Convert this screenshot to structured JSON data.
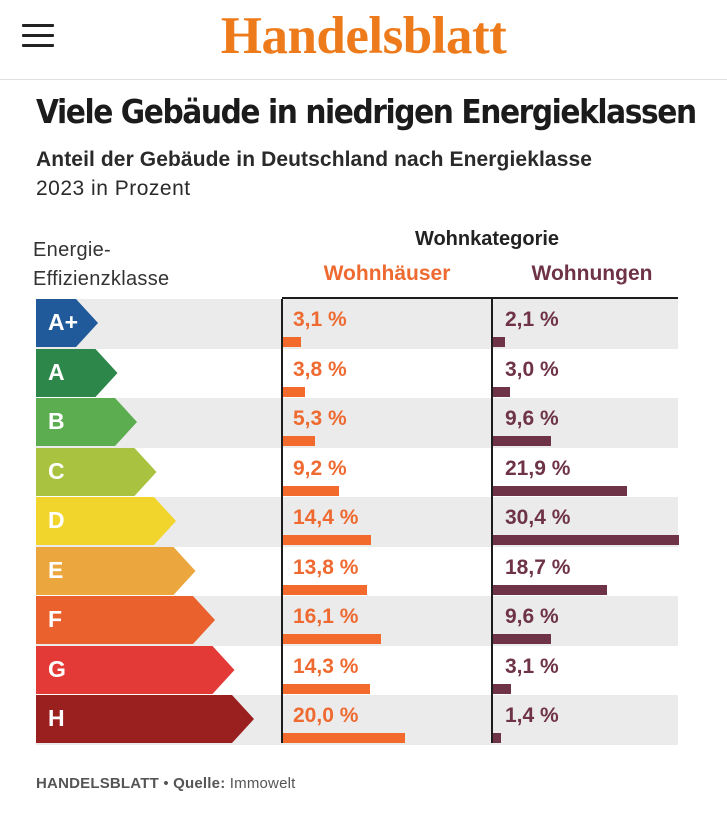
{
  "header": {
    "logo_text": "Handelsblatt",
    "menu_icon": "hamburger-menu-icon"
  },
  "article": {
    "title": "Viele Gebäude in niedrigen Energieklassen",
    "subtitle": "Anteil der Gebäude in Deutschland nach Energieklasse",
    "unit_line": "2023 in Prozent"
  },
  "table": {
    "energy_header_line1": "Energie-",
    "energy_header_line2": "Effizienzklasse",
    "category_header": "Wohnkategorie",
    "col1_header": "Wohnhäuser",
    "col2_header": "Wohnungen"
  },
  "footer": {
    "brand": "HANDELSBLATT",
    "separator": " • ",
    "source_label": "Quelle:",
    "source": " Immowelt"
  },
  "colors": {
    "logo": "#ee7b1b",
    "wohnhaeuser": "#f26a2c",
    "wohnungen": "#6e3346",
    "A+": "#205a9b",
    "A": "#2e874a",
    "B": "#5bad4f",
    "C": "#a9c341",
    "D": "#f2d52c",
    "E": "#eba63d",
    "F": "#ea612d",
    "G": "#e43a37",
    "H": "#9a1f1f"
  },
  "chart_data": {
    "type": "bar",
    "title": "Viele Gebäude in niedrigen Energieklassen",
    "subtitle": "Anteil der Gebäude in Deutschland nach Energieklasse",
    "categories": [
      "A+",
      "A",
      "B",
      "C",
      "D",
      "E",
      "F",
      "G",
      "H"
    ],
    "series": [
      {
        "name": "Wohnhäuser",
        "values": [
          3.1,
          3.8,
          5.3,
          9.2,
          14.4,
          13.8,
          16.1,
          14.3,
          20.0
        ],
        "labels": [
          "3,1 %",
          "3,8 %",
          "5,3 %",
          "9,2 %",
          "14,4 %",
          "13,8 %",
          "16,1 %",
          "14,3 %",
          "20,0 %"
        ]
      },
      {
        "name": "Wohnungen",
        "values": [
          2.1,
          3.0,
          9.6,
          21.9,
          30.4,
          18.7,
          9.6,
          3.1,
          1.4
        ],
        "labels": [
          "2,1 %",
          "3,0 %",
          "9,6 %",
          "21,9 %",
          "30,4 %",
          "18,7 %",
          "9,6 %",
          "3,1 %",
          "1,4 %"
        ]
      }
    ],
    "unit": "Prozent",
    "year": "2023"
  }
}
